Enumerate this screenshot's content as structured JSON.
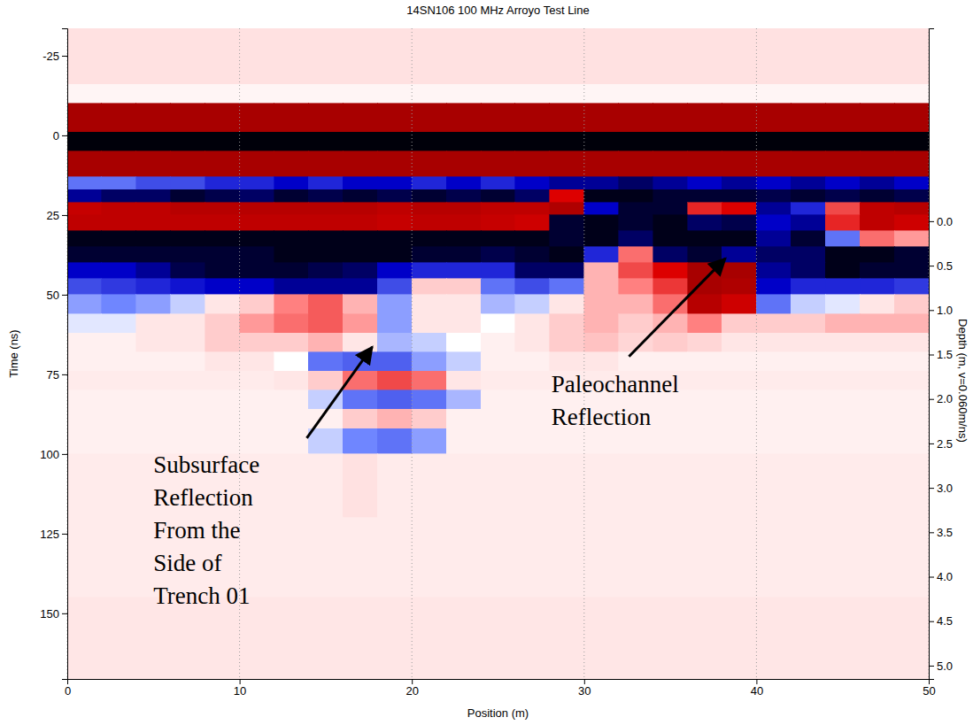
{
  "chart_data": {
    "type": "heatmap",
    "title": "14SN106 100 MHz Arroyo Test Line",
    "x_label": "Position (m)",
    "y_label": "Time (ns)",
    "y2_label": "Depth (m, v=0.060m/ns)",
    "xlim": [
      0,
      50
    ],
    "ylim": [
      -33.6,
      170.6
    ],
    "y2lim": [
      -2.17,
      5.15
    ],
    "xticks": [
      0,
      10,
      20,
      30,
      40,
      50
    ],
    "yticks": [
      -25,
      0,
      25,
      50,
      75,
      100,
      125,
      150
    ],
    "y2ticks": [
      {
        "value": 0,
        "label": "0.0"
      },
      0.5,
      {
        "value": 1,
        "label": "1.0"
      },
      1.5,
      {
        "value": 2,
        "label": "2.0"
      },
      2.5,
      {
        "value": 3,
        "label": "3.0"
      },
      3.5,
      {
        "value": 4,
        "label": "4.0"
      },
      4.5,
      {
        "value": 5,
        "label": "5.0"
      }
    ],
    "grid": "x",
    "zlim": [
      -1,
      1
    ],
    "x_edges": [
      0,
      2,
      4,
      6,
      8,
      10,
      12,
      14,
      16,
      18,
      20,
      22,
      24,
      26,
      28,
      30,
      32,
      34,
      36,
      38,
      40,
      42,
      44,
      46,
      48,
      50
    ],
    "y_edges": [
      -34,
      -16,
      -10,
      -1,
      5,
      13,
      17,
      21,
      25,
      30,
      35,
      40,
      45,
      50,
      56,
      62,
      68,
      74,
      80,
      86,
      92,
      100,
      120,
      145,
      171
    ],
    "values": [
      [
        0.06,
        0.06,
        0.06,
        0.06,
        0.06,
        0.06,
        0.06,
        0.06,
        0.06,
        0.06,
        0.06,
        0.06,
        0.06,
        0.06,
        0.06,
        0.06,
        0.06,
        0.06,
        0.06,
        0.06,
        0.06,
        0.06,
        0.06,
        0.06,
        0.06
      ],
      [
        0.02,
        0.02,
        0.02,
        0.02,
        0.02,
        0.02,
        0.02,
        0.02,
        0.02,
        0.02,
        0.02,
        0.02,
        0.02,
        0.02,
        0.02,
        0.02,
        0.02,
        0.02,
        0.02,
        0.02,
        0.02,
        0.02,
        0.02,
        0.02,
        0.02
      ],
      [
        0.95,
        0.95,
        0.95,
        0.95,
        0.95,
        0.95,
        0.95,
        0.95,
        0.95,
        0.95,
        0.95,
        0.95,
        0.95,
        0.95,
        0.95,
        0.95,
        0.95,
        0.95,
        0.95,
        0.95,
        0.95,
        0.95,
        0.95,
        0.95,
        0.95
      ],
      [
        -0.98,
        -0.98,
        -0.98,
        -0.98,
        -0.98,
        -0.98,
        -0.98,
        -0.98,
        -0.98,
        -0.98,
        -0.98,
        -0.98,
        -0.98,
        -0.98,
        -0.98,
        -0.98,
        -0.98,
        -0.98,
        -0.98,
        -0.98,
        -0.98,
        -0.98,
        -0.98,
        -0.98,
        -0.98
      ],
      [
        0.95,
        0.95,
        0.95,
        0.95,
        0.95,
        0.95,
        0.95,
        0.95,
        0.95,
        0.95,
        0.95,
        0.95,
        0.95,
        0.95,
        0.95,
        0.95,
        0.95,
        0.95,
        0.95,
        0.95,
        0.95,
        0.95,
        0.95,
        0.95,
        0.95
      ],
      [
        -0.3,
        -0.3,
        -0.4,
        -0.4,
        -0.5,
        -0.5,
        -0.6,
        -0.5,
        -0.6,
        -0.6,
        -0.5,
        -0.6,
        -0.5,
        -0.6,
        -0.7,
        -0.7,
        -0.8,
        -0.7,
        -0.6,
        -0.7,
        -0.6,
        -0.7,
        -0.6,
        -0.7,
        -0.6
      ],
      [
        -0.7,
        -0.8,
        -0.8,
        -0.9,
        -0.85,
        -0.8,
        -0.9,
        -0.85,
        -0.9,
        -0.85,
        -0.9,
        -0.85,
        -0.9,
        -0.8,
        0.6,
        -0.95,
        -0.95,
        -0.9,
        -0.9,
        -0.9,
        -0.85,
        -0.9,
        -0.85,
        -0.9,
        -0.85
      ],
      [
        0.75,
        0.8,
        0.8,
        0.85,
        0.85,
        0.85,
        0.85,
        0.85,
        0.85,
        0.8,
        0.85,
        0.85,
        0.8,
        0.8,
        0.9,
        -0.6,
        -0.9,
        -0.9,
        0.5,
        0.6,
        -0.7,
        -0.5,
        0.4,
        0.8,
        0.85
      ],
      [
        0.8,
        0.8,
        0.8,
        0.8,
        0.8,
        0.8,
        0.8,
        0.8,
        0.8,
        0.75,
        0.8,
        0.8,
        0.75,
        0.7,
        -0.9,
        -0.95,
        -0.9,
        -0.95,
        -0.8,
        -0.85,
        -0.6,
        -0.7,
        0.5,
        0.8,
        0.7
      ],
      [
        -0.95,
        -0.95,
        -0.95,
        -0.95,
        -0.95,
        -0.95,
        -0.95,
        -0.95,
        -0.95,
        -0.95,
        -0.95,
        -0.95,
        -0.95,
        -0.95,
        -0.9,
        -0.95,
        -0.8,
        -0.95,
        -0.95,
        -0.95,
        -0.7,
        -0.9,
        -0.3,
        0.3,
        0.2
      ],
      [
        -0.9,
        -0.9,
        -0.9,
        -0.9,
        -0.9,
        -0.9,
        -0.95,
        -0.95,
        -0.95,
        -0.95,
        -0.9,
        -0.9,
        -0.85,
        -0.9,
        -0.95,
        -0.5,
        0.3,
        -0.8,
        -0.9,
        -0.7,
        -0.8,
        -0.8,
        -0.95,
        -0.95,
        -0.9
      ],
      [
        -0.6,
        -0.6,
        -0.7,
        -0.85,
        -0.9,
        -0.9,
        -0.9,
        -0.85,
        -0.8,
        -0.6,
        -0.5,
        -0.5,
        -0.5,
        -0.8,
        -0.8,
        0.15,
        0.4,
        0.6,
        0.95,
        0.95,
        -0.7,
        -0.8,
        -0.95,
        -0.9,
        -0.9
      ],
      [
        -0.4,
        -0.45,
        -0.5,
        -0.55,
        -0.6,
        -0.6,
        -0.7,
        -0.7,
        -0.7,
        -0.4,
        0.1,
        0.1,
        -0.3,
        -0.4,
        -0.3,
        0.15,
        0.25,
        0.45,
        0.95,
        0.9,
        -0.6,
        -0.5,
        -0.5,
        -0.5,
        -0.45
      ],
      [
        -0.2,
        -0.25,
        -0.2,
        -0.1,
        0.05,
        0.1,
        0.25,
        0.35,
        0.15,
        -0.2,
        0.05,
        0.05,
        -0.15,
        -0.1,
        0.05,
        0.15,
        0.15,
        0.3,
        0.85,
        0.7,
        -0.3,
        -0.1,
        -0.05,
        0.05,
        0.1
      ],
      [
        -0.05,
        -0.05,
        0.05,
        0.05,
        0.1,
        0.2,
        0.3,
        0.35,
        0.2,
        -0.2,
        0.05,
        0.05,
        0,
        0.05,
        0.1,
        0.15,
        0.1,
        0.15,
        0.25,
        0.1,
        0.1,
        0.1,
        0.15,
        0.15,
        0.15
      ],
      [
        0.03,
        0.03,
        0.05,
        0.05,
        0.1,
        0.1,
        0.1,
        0.15,
        0.05,
        -0.15,
        -0.1,
        0,
        0.03,
        0.05,
        0.1,
        0.12,
        0.08,
        0.1,
        0.08,
        0.05,
        0.05,
        0.05,
        0.05,
        0.05,
        0.05
      ],
      [
        0.03,
        0.03,
        0.03,
        0.03,
        0.05,
        0.05,
        0,
        -0.3,
        -0.35,
        -0.35,
        -0.2,
        -0.1,
        0.03,
        0.03,
        0.05,
        0.05,
        0.03,
        0.03,
        0.03,
        0.03,
        0.03,
        0.03,
        0.03,
        0.03,
        0.03
      ],
      [
        0.04,
        0.04,
        0.04,
        0.04,
        0.04,
        0.04,
        0.05,
        0.1,
        0.3,
        0.4,
        0.3,
        0.05,
        0.04,
        0.04,
        0.04,
        0.04,
        0.04,
        0.04,
        0.04,
        0.04,
        0.04,
        0.04,
        0.04,
        0.04,
        0.04
      ],
      [
        0.03,
        0.03,
        0.03,
        0.03,
        0.03,
        0.03,
        0.03,
        -0.1,
        -0.3,
        -0.35,
        -0.3,
        -0.15,
        0.03,
        0.03,
        0.03,
        0.03,
        0.03,
        0.03,
        0.03,
        0.03,
        0.03,
        0.03,
        0.03,
        0.03,
        0.03
      ],
      [
        0.03,
        0.03,
        0.03,
        0.03,
        0.03,
        0.03,
        0.03,
        0.03,
        0.1,
        0.15,
        0.1,
        0.03,
        0.03,
        0.03,
        0.03,
        0.03,
        0.03,
        0.03,
        0.03,
        0.03,
        0.03,
        0.03,
        0.03,
        0.03,
        0.03
      ],
      [
        0.03,
        0.03,
        0.03,
        0.03,
        0.03,
        0.03,
        0.03,
        -0.1,
        -0.25,
        -0.3,
        -0.2,
        0.03,
        0.03,
        0.03,
        0.03,
        0.03,
        0.03,
        0.03,
        0.03,
        0.03,
        0.03,
        0.03,
        0.03,
        0.03,
        0.03
      ],
      [
        0.04,
        0.04,
        0.04,
        0.04,
        0.04,
        0.04,
        0.04,
        0.04,
        0.06,
        0.04,
        0.04,
        0.04,
        0.04,
        0.04,
        0.04,
        0.04,
        0.04,
        0.04,
        0.04,
        0.04,
        0.04,
        0.04,
        0.04,
        0.04,
        0.04
      ],
      [
        0.04,
        0.04,
        0.04,
        0.04,
        0.04,
        0.04,
        0.04,
        0.04,
        0.04,
        0.04,
        0.04,
        0.04,
        0.04,
        0.04,
        0.04,
        0.04,
        0.04,
        0.04,
        0.04,
        0.04,
        0.04,
        0.04,
        0.04,
        0.04,
        0.04
      ],
      [
        0.05,
        0.05,
        0.05,
        0.05,
        0.05,
        0.05,
        0.05,
        0.05,
        0.05,
        0.05,
        0.05,
        0.05,
        0.05,
        0.05,
        0.05,
        0.05,
        0.05,
        0.05,
        0.05,
        0.05,
        0.05,
        0.05,
        0.05,
        0.05,
        0.05
      ]
    ],
    "annotations": [
      {
        "text": "Subsurface\nReflection\nFrom the\nSide of\nTrench 01",
        "x": 5.0,
        "y": 106,
        "xytext": [
          13.9,
          95
        ],
        "xy": [
          17.7,
          66.4
        ]
      },
      {
        "text": "Paleochannel\nReflection",
        "x": 28.1,
        "y": 80.6,
        "xytext": [
          32.6,
          69.4
        ],
        "xy": [
          38.2,
          38.6
        ]
      }
    ]
  }
}
